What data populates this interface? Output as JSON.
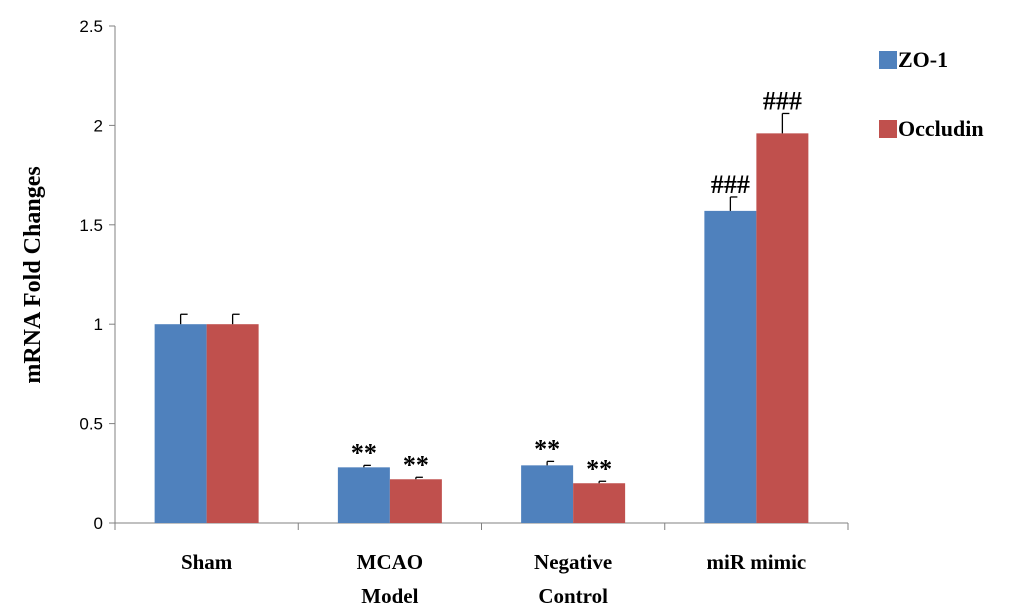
{
  "chart_data": {
    "type": "bar",
    "title": "",
    "xlabel": "",
    "ylabel": "mRNA Fold Changes",
    "ylim": [
      0,
      2.5
    ],
    "yticks": [
      "0",
      "0.5",
      "1",
      "1.5",
      "2",
      "2.5"
    ],
    "ytick_values": [
      0,
      0.5,
      1,
      1.5,
      2,
      2.5
    ],
    "grid": false,
    "legend_position": "top-right",
    "categories": [
      [
        "Sham"
      ],
      [
        "MCAO",
        "Model"
      ],
      [
        "Negative",
        "Control"
      ],
      [
        "miR mimic"
      ]
    ],
    "series": [
      {
        "name": "ZO-1",
        "color": "#4F81BD",
        "values": [
          1.0,
          0.28,
          0.29,
          1.57
        ],
        "errors": [
          0.05,
          0.01,
          0.02,
          0.07
        ],
        "annotations": [
          "",
          "**",
          "**",
          "###"
        ]
      },
      {
        "name": "Occludin",
        "color": "#C0504D",
        "values": [
          1.0,
          0.22,
          0.2,
          1.96
        ],
        "errors": [
          0.05,
          0.01,
          0.01,
          0.1
        ],
        "annotations": [
          "",
          "**",
          "**",
          "###"
        ]
      }
    ]
  }
}
